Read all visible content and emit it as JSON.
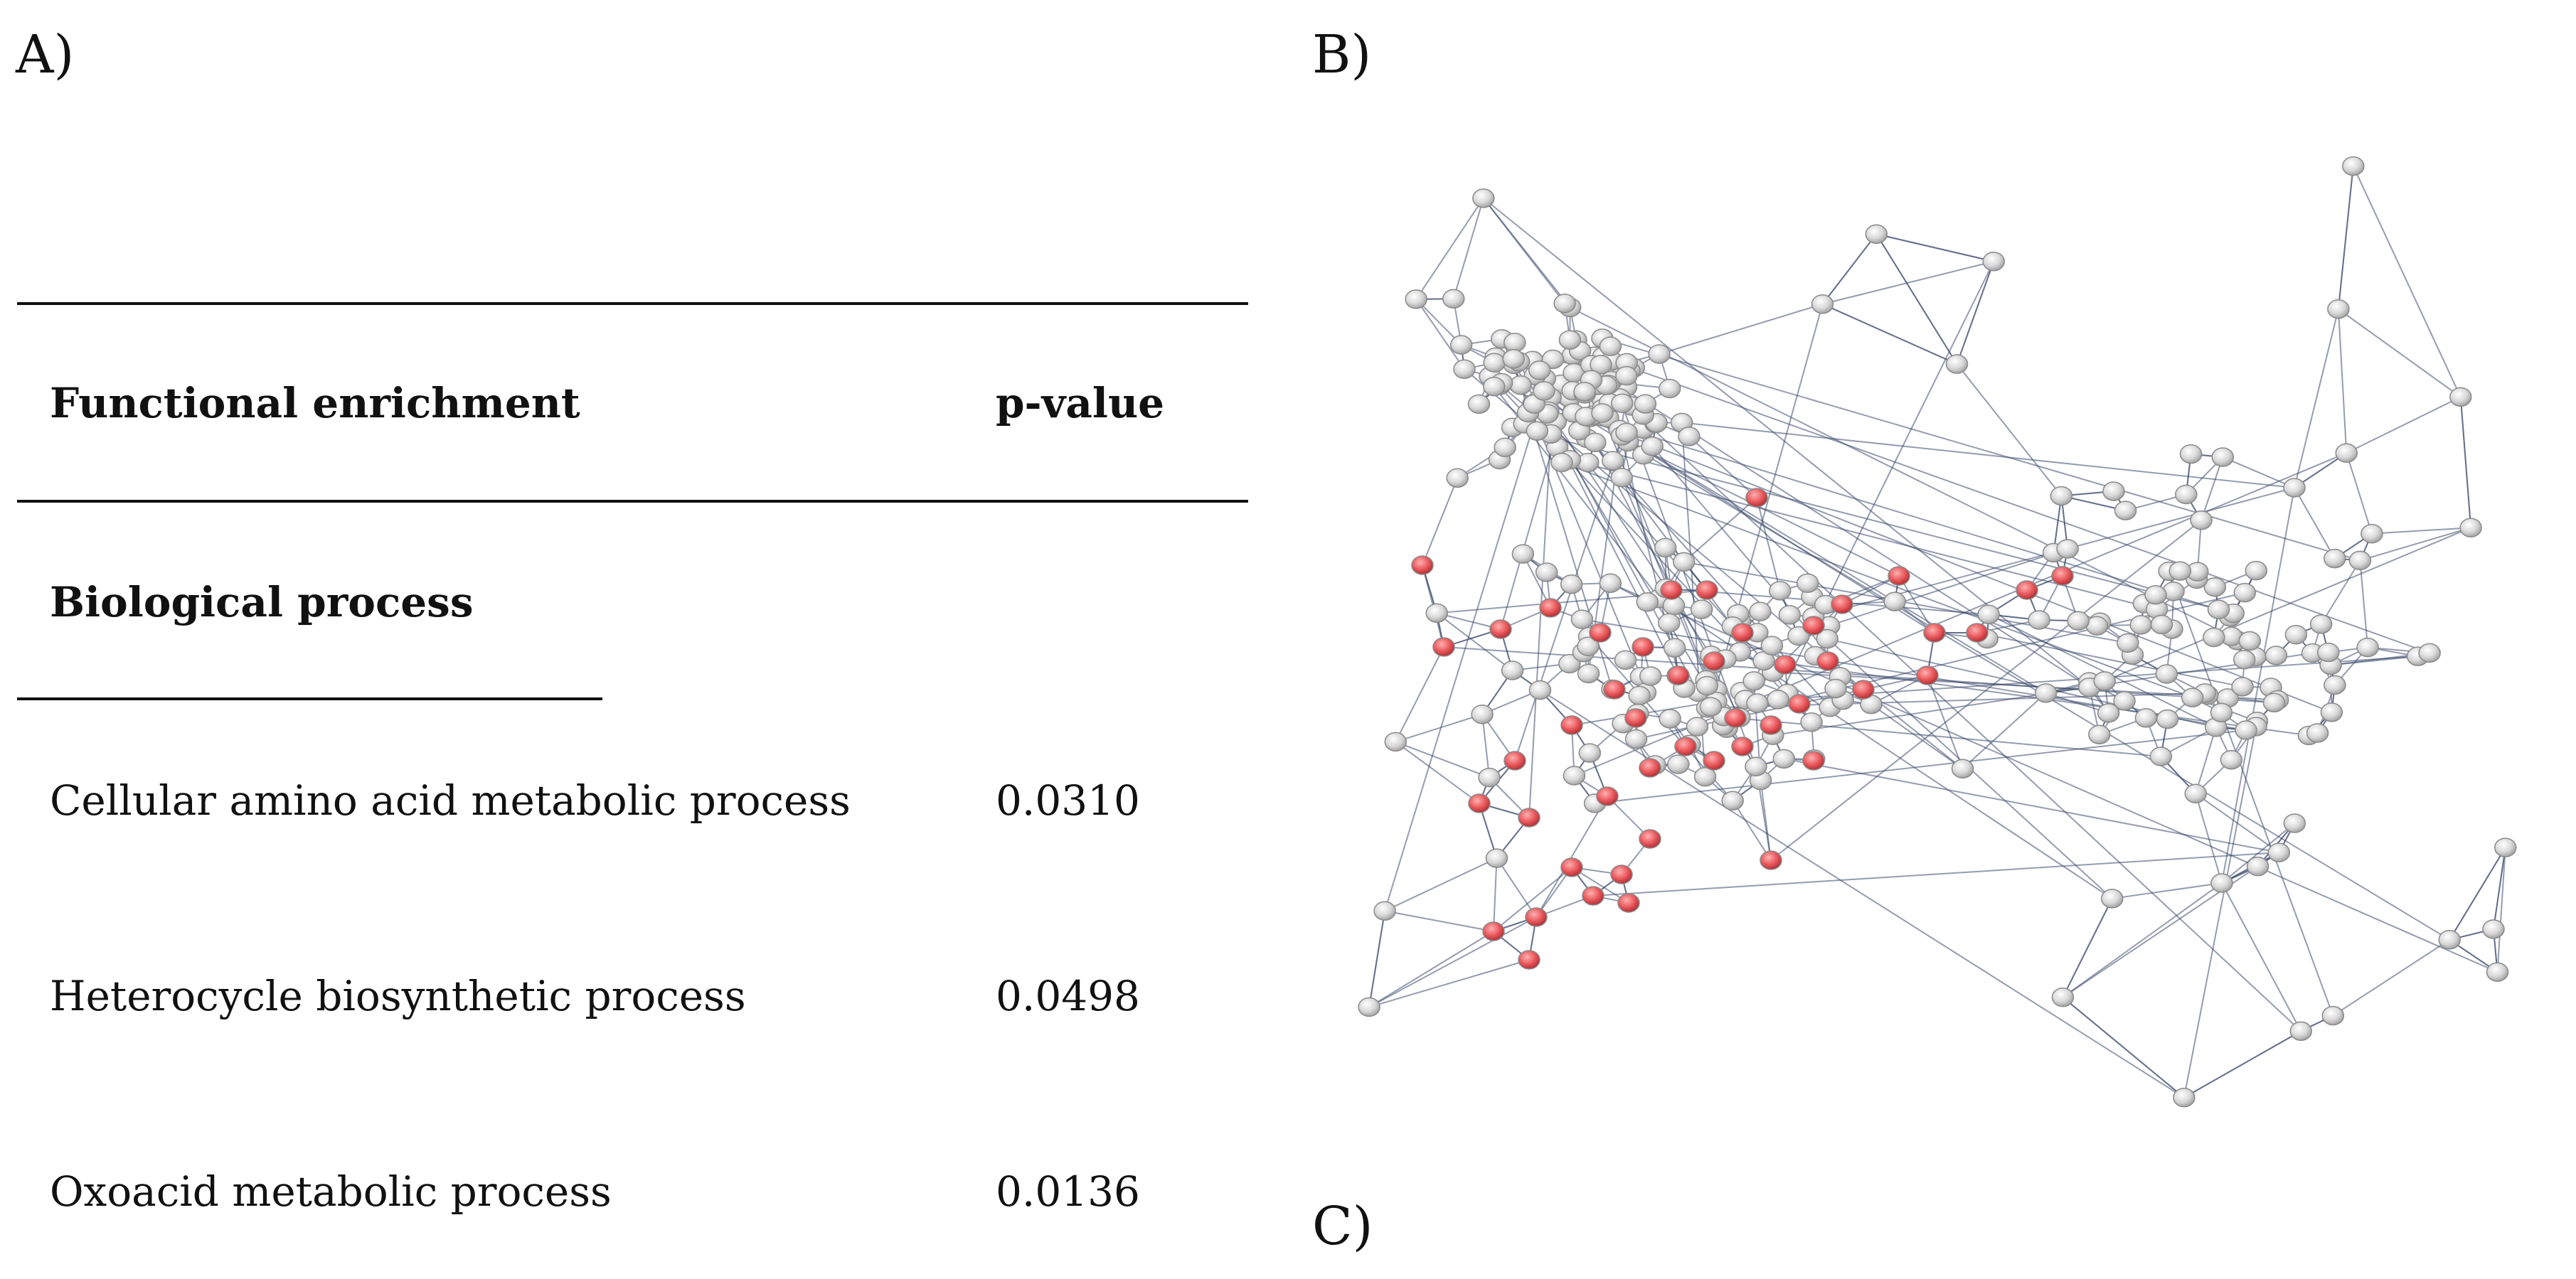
{
  "labels": {
    "a": "A)",
    "b": "B)",
    "c": "C)"
  },
  "table": {
    "header": {
      "term": "Functional enrichment",
      "p_value": "p-value"
    },
    "section": "Biological process",
    "rows": [
      {
        "term": "Cellular amino acid metabolic process",
        "p_value": "0.0310"
      },
      {
        "term": "Heterocycle biosynthetic process",
        "p_value": "0.0498"
      },
      {
        "term": "Oxoacid metabolic process",
        "p_value": "0.0136"
      }
    ]
  },
  "network": {
    "colors": {
      "node_default": "#d9d9d9",
      "node_highlight": "#e8585c",
      "edge": "#3c4a6e",
      "node_outline": "#8a8a8a"
    }
  }
}
